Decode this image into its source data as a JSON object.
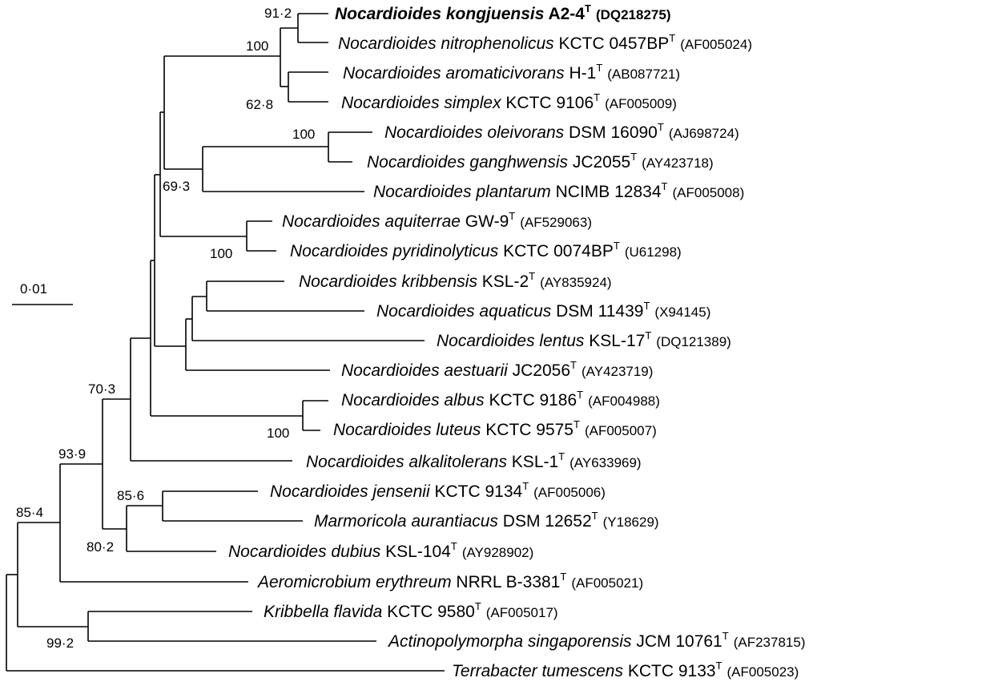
{
  "taxa": [
    {
      "genus": "Nocardioides",
      "species": "kongjuensis",
      "strain": "A2-4",
      "accession": "(DQ218275)",
      "bold": true
    },
    {
      "genus": "Nocardioides",
      "species": "nitrophenolicus",
      "strain": "KCTC 0457BP",
      "accession": "(AF005024)"
    },
    {
      "genus": "Nocardioides",
      "species": "aromaticivorans",
      "strain": "H-1",
      "accession": "(AB087721)"
    },
    {
      "genus": "Nocardioides",
      "species": "simplex",
      "strain": "KCTC 9106",
      "accession": "(AF005009)"
    },
    {
      "genus": "Nocardioides",
      "species": "oleivorans",
      "strain": "DSM 16090",
      "accession": "(AJ698724)"
    },
    {
      "genus": "Nocardioides",
      "species": "ganghwensis",
      "strain": "JC2055",
      "accession": "(AY423718)"
    },
    {
      "genus": "Nocardioides",
      "species": "plantarum",
      "strain": "NCIMB 12834",
      "accession": "(AF005008)"
    },
    {
      "genus": "Nocardioides",
      "species": "aquiterrae",
      "strain": "GW-9",
      "accession": "(AF529063)"
    },
    {
      "genus": "Nocardioides",
      "species": "pyridinolyticus",
      "strain": "KCTC 0074BP",
      "accession": "(U61298)"
    },
    {
      "genus": "Nocardioides",
      "species": "kribbensis",
      "strain": "KSL-2",
      "accession": "(AY835924)"
    },
    {
      "genus": "Nocardioides",
      "species": "aquaticus",
      "strain": "DSM 11439",
      "accession": "(X94145)"
    },
    {
      "genus": "Nocardioides",
      "species": "lentus",
      "strain": "KSL-17",
      "accession": "(DQ121389)"
    },
    {
      "genus": "Nocardioides",
      "species": "aestuarii",
      "strain": "JC2056",
      "accession": "(AY423719)"
    },
    {
      "genus": "Nocardioides",
      "species": "albus",
      "strain": "KCTC 9186",
      "accession": "(AF004988)"
    },
    {
      "genus": "Nocardioides",
      "species": "luteus",
      "strain": "KCTC 9575",
      "accession": "(AF005007)"
    },
    {
      "genus": "Nocardioides",
      "species": "alkalitolerans",
      "strain": "KSL-1",
      "accession": "(AY633969)"
    },
    {
      "genus": "Nocardioides",
      "species": "jensenii",
      "strain": "KCTC 9134",
      "accession": "(AF005006)"
    },
    {
      "genus": "Marmoricola",
      "species": "aurantiacus",
      "strain": "DSM 12652",
      "accession": "(Y18629)"
    },
    {
      "genus": "Nocardioides",
      "species": "dubius",
      "strain": "KSL-104",
      "accession": "(AY928902)"
    },
    {
      "genus": "Aeromicrobium",
      "species": "erythreum",
      "strain": "NRRL B-3381",
      "accession": "(AF005021)"
    },
    {
      "genus": "Kribbella",
      "species": "flavida",
      "strain": "KCTC 9580",
      "accession": "(AF005017)"
    },
    {
      "genus": "Actinopolymorpha",
      "species": "singaporensis",
      "strain": "JCM 10761",
      "accession": "(AF237815)"
    },
    {
      "genus": "Terrabacter",
      "species": "tumescens",
      "strain": "KCTC 9133",
      "accession": "(AF005023)"
    }
  ],
  "type_strain_mark": "T",
  "bootstrap_values": [
    "91·2",
    "100",
    "62·8",
    "100",
    "69·3",
    "100",
    "70·3",
    "100",
    "93·9",
    "85·6",
    "80·2",
    "85·4",
    "99·2"
  ],
  "scale_bar": {
    "label": "0·01"
  }
}
